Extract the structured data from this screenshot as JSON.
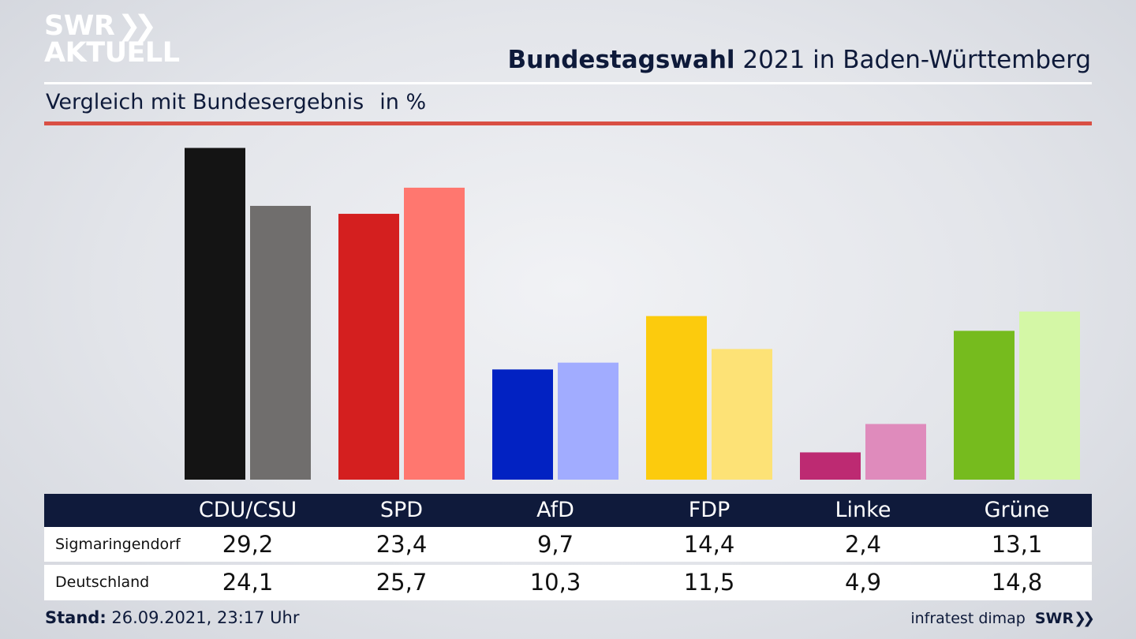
{
  "brand": {
    "logo_line1": "SWR",
    "logo_chevrons": "❯❯",
    "logo_line2": "AKTUELL"
  },
  "header": {
    "title_bold": "Bundestagswahl",
    "title_rest": " 2021 in Baden-Württemberg",
    "subtitle": "Vergleich mit Bundesergebnis",
    "unit": "in %"
  },
  "chart_data": {
    "type": "bar",
    "categories": [
      "CDU/CSU",
      "SPD",
      "AfD",
      "FDP",
      "Linke",
      "Grüne"
    ],
    "series": [
      {
        "name": "Sigmaringendorf",
        "values_text": [
          "29,2",
          "23,4",
          "9,7",
          "14,4",
          "2,4",
          "13,1"
        ],
        "values": [
          29.2,
          23.4,
          9.7,
          14.4,
          2.4,
          13.1
        ],
        "colors": [
          "#141414",
          "#d41f1f",
          "#0222c2",
          "#fccb0d",
          "#bd2a72",
          "#76bb1e"
        ]
      },
      {
        "name": "Deutschland",
        "values_text": [
          "24,1",
          "25,7",
          "10,3",
          "11,5",
          "4,9",
          "14,8"
        ],
        "values": [
          24.1,
          25.7,
          10.3,
          11.5,
          4.9,
          14.8
        ],
        "colors": [
          "#706e6d",
          "#ff776f",
          "#a1acff",
          "#fde276",
          "#df8bbc",
          "#d4f7a6"
        ]
      }
    ],
    "ylim": [
      0,
      30
    ]
  },
  "footer": {
    "stand_label": "Stand:",
    "stand_value": " 26.09.2021, 23:17 Uhr",
    "source": "infratest dimap",
    "brand": "SWR",
    "brand_chevrons": "❯❯"
  }
}
